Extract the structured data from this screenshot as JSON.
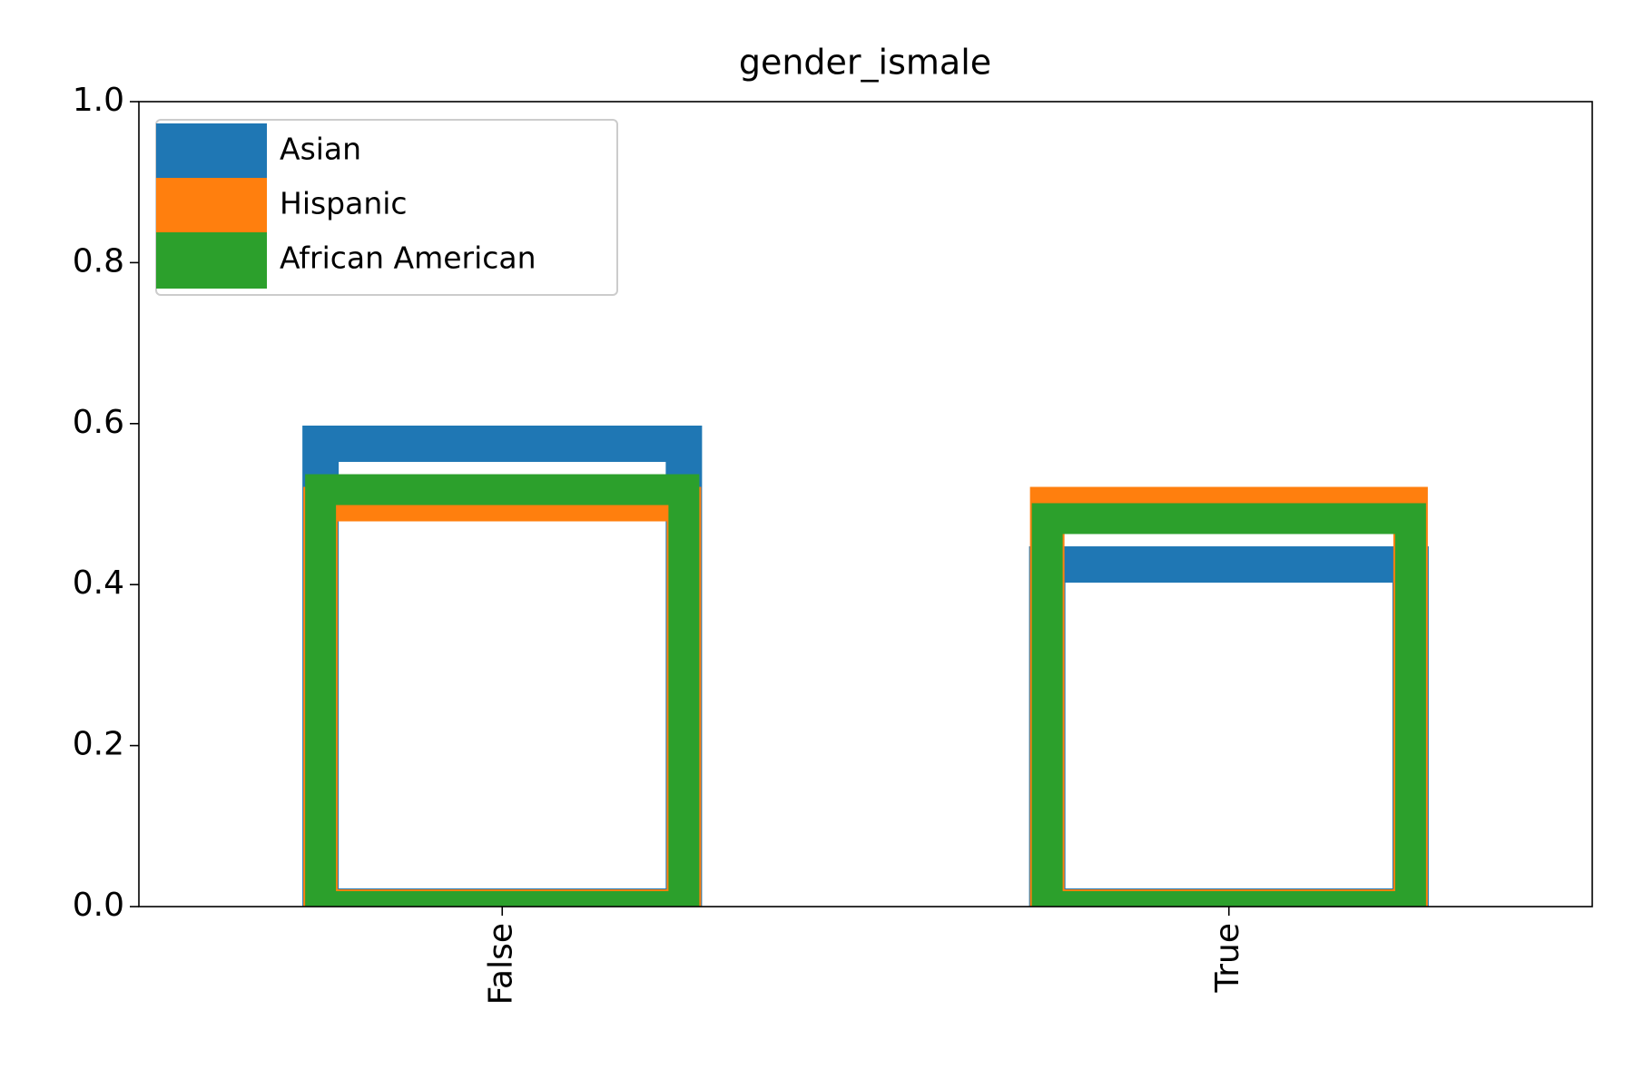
{
  "chart_data": {
    "type": "bar",
    "title": "gender_ismale",
    "categories": [
      "False",
      "True"
    ],
    "series": [
      {
        "name": "Asian",
        "color": "#1f77b4",
        "values": [
          0.575,
          0.425
        ]
      },
      {
        "name": "Hispanic",
        "color": "#ff7f0e",
        "values": [
          0.5,
          0.5
        ]
      },
      {
        "name": "African American",
        "color": "#2ca02c",
        "values": [
          0.518,
          0.482
        ]
      }
    ],
    "ylim": [
      0,
      1
    ],
    "yticks": [
      {
        "value": 0,
        "label": "0.0"
      },
      {
        "value": 0.2,
        "label": "0.2"
      },
      {
        "value": 0.4,
        "label": "0.4"
      },
      {
        "value": 0.6,
        "label": "0.6"
      },
      {
        "value": 0.8,
        "label": "0.8"
      },
      {
        "value": 1,
        "label": "1.0"
      }
    ],
    "legend": "upper left"
  }
}
